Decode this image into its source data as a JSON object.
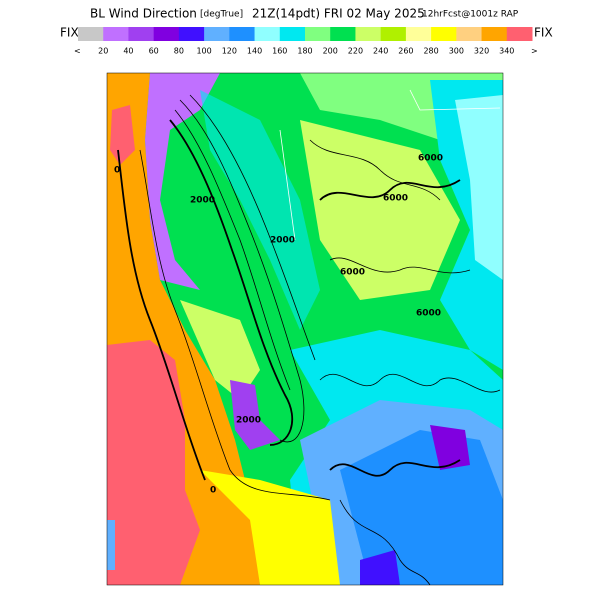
{
  "header": {
    "title": "BL Wind Direction",
    "units": "[degTrue]",
    "valid": "21Z(14pdt) FRI 02 May 2025",
    "forecast": "12hrFcst@1001z RAP"
  },
  "colorbar": {
    "left_label": "FIX",
    "right_label": "FIX",
    "under_label": "<",
    "over_label": ">",
    "colors": [
      "#c8c8c8",
      "#c070ff",
      "#a040f0",
      "#8000e0",
      "#4010ff",
      "#60b0ff",
      "#1e90ff",
      "#90ffff",
      "#00e8f0",
      "#80ff80",
      "#00e050",
      "#ccff66",
      "#b0f000",
      "#ffff99",
      "#ffff00",
      "#ffd080",
      "#ffa500",
      "#ff6070"
    ],
    "ticks": [
      20,
      40,
      60,
      80,
      100,
      120,
      140,
      160,
      180,
      200,
      220,
      240,
      260,
      280,
      300,
      320,
      340
    ]
  },
  "contour_labels": [
    "6000",
    "6000",
    "6000",
    "6000",
    "2000",
    "2000",
    "2000",
    "0",
    "0"
  ]
}
